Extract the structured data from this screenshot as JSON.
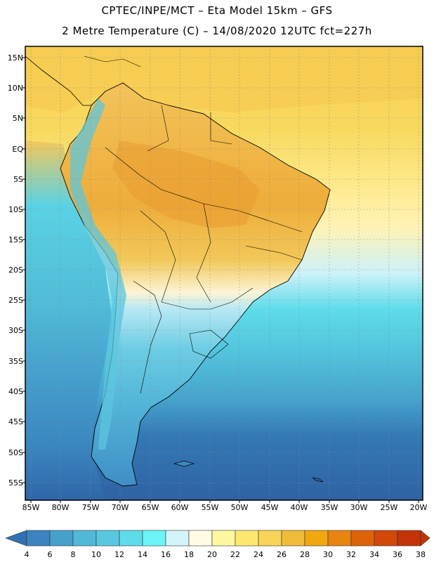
{
  "header": {
    "line1": "CPTEC/INPE/MCT –  Eta Model 15km – GFS",
    "line2": "2 Metre Temperature (C) – 14/08/2020 12UTC fct=227h"
  },
  "map": {
    "lat_labels": [
      "15N",
      "10N",
      "5N",
      "EQ",
      "5S",
      "10S",
      "15S",
      "20S",
      "25S",
      "30S",
      "35S",
      "40S",
      "45S",
      "50S",
      "55S"
    ],
    "lon_labels": [
      "85W",
      "80W",
      "75W",
      "70W",
      "65W",
      "60W",
      "55W",
      "50W",
      "45W",
      "40W",
      "35W",
      "30W",
      "25W",
      "20W"
    ]
  },
  "colorbar": {
    "labels": [
      "4",
      "6",
      "8",
      "10",
      "12",
      "14",
      "16",
      "18",
      "20",
      "22",
      "24",
      "26",
      "28",
      "30",
      "32",
      "34",
      "36",
      "38"
    ],
    "colors": [
      "#3370b0",
      "#3b84c0",
      "#46a0cc",
      "#52b8d8",
      "#58c8e0",
      "#5edcea",
      "#6cf4f8",
      "#d4f4fc",
      "#fffbe4",
      "#fff8a0",
      "#fde870",
      "#f8d458",
      "#f0bc38",
      "#f0a810",
      "#e88410",
      "#de6208",
      "#d24808",
      "#c23408"
    ]
  }
}
